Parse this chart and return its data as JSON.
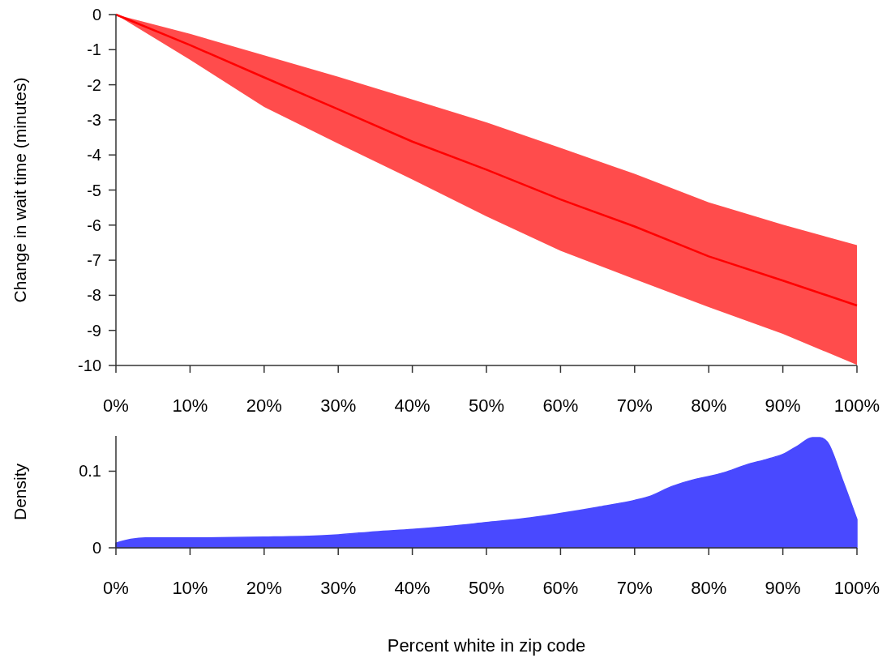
{
  "chart_data": [
    {
      "type": "line",
      "ylabel": "Change in wait time (minutes)",
      "x": [
        0,
        10,
        20,
        30,
        40,
        50,
        60,
        70,
        80,
        90,
        100
      ],
      "series": [
        {
          "color": "#ff0000",
          "values": [
            0,
            -0.87,
            -1.79,
            -2.7,
            -3.62,
            -4.42,
            -5.27,
            -6.04,
            -6.89,
            -7.58,
            -8.29
          ],
          "lower": [
            0,
            -1.29,
            -2.63,
            -3.68,
            -4.7,
            -5.75,
            -6.73,
            -7.54,
            -8.34,
            -9.1,
            -9.98
          ],
          "upper": [
            0,
            -0.55,
            -1.16,
            -1.77,
            -2.42,
            -3.07,
            -3.8,
            -4.54,
            -5.35,
            -5.99,
            -6.57
          ]
        }
      ],
      "xlim": [
        0,
        100
      ],
      "xticks": [
        {
          "value": 0,
          "label": "0%"
        },
        {
          "value": 10,
          "label": "10%"
        },
        {
          "value": 20,
          "label": "20%"
        },
        {
          "value": 30,
          "label": "30%"
        },
        {
          "value": 40,
          "label": "40%"
        },
        {
          "value": 50,
          "label": "50%"
        },
        {
          "value": 60,
          "label": "60%"
        },
        {
          "value": 70,
          "label": "70%"
        },
        {
          "value": 80,
          "label": "80%"
        },
        {
          "value": 90,
          "label": "90%"
        },
        {
          "value": 100,
          "label": "100%"
        }
      ],
      "ylim": [
        -10,
        0
      ],
      "yticks": [
        0,
        -1,
        -2,
        -3,
        -4,
        -5,
        -6,
        -7,
        -8,
        -9,
        -10
      ]
    },
    {
      "type": "area",
      "xlabel": "Percent white in zip code",
      "ylabel": "Density",
      "x": [
        0,
        2,
        4,
        10,
        20,
        28,
        30,
        35,
        40,
        45,
        50,
        55,
        60,
        65,
        70,
        72,
        75,
        78,
        80,
        82,
        85,
        88,
        90,
        92,
        94,
        95,
        96,
        98,
        100
      ],
      "series": [
        {
          "color": "#4949ff",
          "values": [
            0.006,
            0.011,
            0.013,
            0.013,
            0.014,
            0.016,
            0.017,
            0.021,
            0.024,
            0.028,
            0.033,
            0.038,
            0.045,
            0.053,
            0.062,
            0.067,
            0.08,
            0.089,
            0.093,
            0.098,
            0.108,
            0.116,
            0.122,
            0.133,
            0.144,
            0.144,
            0.138,
            0.09,
            0.037
          ]
        }
      ],
      "xlim": [
        0,
        100
      ],
      "xticks": [
        {
          "value": 0,
          "label": "0%"
        },
        {
          "value": 10,
          "label": "10%"
        },
        {
          "value": 20,
          "label": "20%"
        },
        {
          "value": 30,
          "label": "30%"
        },
        {
          "value": 40,
          "label": "40%"
        },
        {
          "value": 50,
          "label": "50%"
        },
        {
          "value": 60,
          "label": "60%"
        },
        {
          "value": 70,
          "label": "70%"
        },
        {
          "value": 80,
          "label": "80%"
        },
        {
          "value": 90,
          "label": "90%"
        },
        {
          "value": 100,
          "label": "100%"
        }
      ],
      "ylim": [
        0,
        0.146
      ],
      "yticks": [
        0,
        0.1
      ]
    }
  ]
}
